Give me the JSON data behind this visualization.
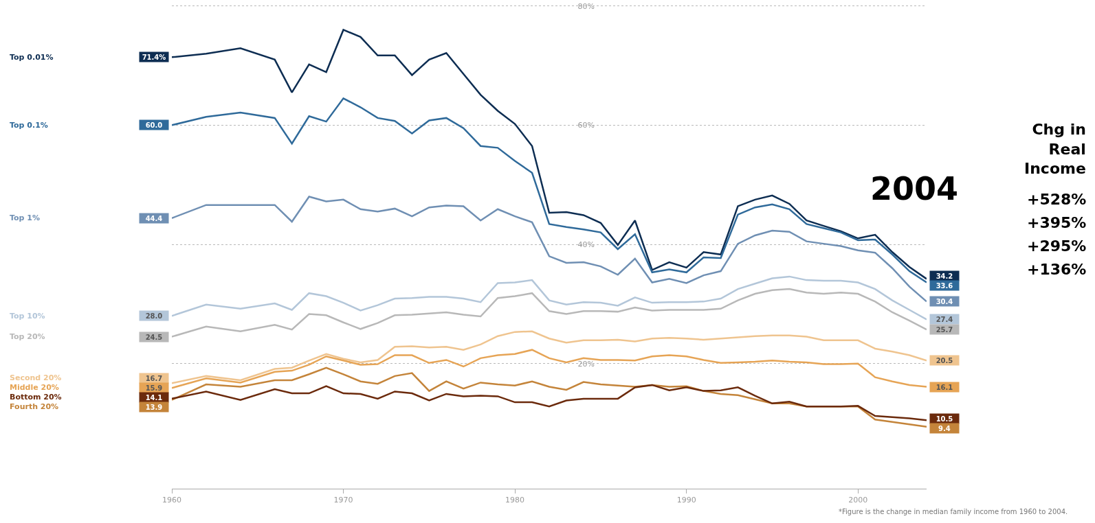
{
  "chart_data": {
    "type": "line",
    "x": [
      1960,
      1962,
      1964,
      1966,
      1967,
      1968,
      1969,
      1970,
      1971,
      1972,
      1973,
      1974,
      1975,
      1976,
      1977,
      1978,
      1979,
      1980,
      1981,
      1982,
      1983,
      1984,
      1985,
      1986,
      1987,
      1988,
      1989,
      1990,
      1991,
      1992,
      1993,
      1994,
      1995,
      1996,
      1997,
      1998,
      1999,
      2000,
      2001,
      2002,
      2003,
      2004
    ],
    "series": [
      {
        "name": "Top 0.01%",
        "color": "#0d2d52",
        "values": [
          71.4,
          72.0,
          72.9,
          71.0,
          65.5,
          70.2,
          68.9,
          76.0,
          74.8,
          71.7,
          71.7,
          68.4,
          71.0,
          72.1,
          68.6,
          65.1,
          62.4,
          60.2,
          56.5,
          45.3,
          45.4,
          44.9,
          43.6,
          39.9,
          44.0,
          35.7,
          37.0,
          36.1,
          38.7,
          38.3,
          46.4,
          47.5,
          48.2,
          46.8,
          44.0,
          43.1,
          42.2,
          41.0,
          41.6,
          38.7,
          36.2,
          34.2
        ],
        "value_labels": [
          "71.4%",
          null,
          null,
          null,
          null,
          null,
          null,
          null,
          null,
          null,
          null,
          null,
          null,
          null,
          null,
          null,
          null,
          null,
          null,
          null,
          null,
          null,
          null,
          null,
          null,
          null,
          null,
          null,
          null,
          null,
          null,
          null,
          null,
          null,
          null,
          null,
          null,
          null,
          null,
          null,
          null,
          "34.2"
        ]
      },
      {
        "name": "Top 0.1%",
        "color": "#2f6a9a",
        "values": [
          60.0,
          61.4,
          62.1,
          61.2,
          56.9,
          61.5,
          60.6,
          64.5,
          63.0,
          61.2,
          60.7,
          58.6,
          60.8,
          61.2,
          59.5,
          56.5,
          56.2,
          54.0,
          52.0,
          43.4,
          42.9,
          42.5,
          42.0,
          39.2,
          41.7,
          35.3,
          35.8,
          35.3,
          37.8,
          37.7,
          45.0,
          46.2,
          46.7,
          45.9,
          43.4,
          42.7,
          42.0,
          40.7,
          40.8,
          38.3,
          35.5,
          33.6
        ],
        "value_labels": [
          "60.0",
          null,
          null,
          null,
          null,
          null,
          null,
          null,
          null,
          null,
          null,
          null,
          null,
          null,
          null,
          null,
          null,
          null,
          null,
          null,
          null,
          null,
          null,
          null,
          null,
          null,
          null,
          null,
          null,
          null,
          null,
          null,
          null,
          null,
          null,
          null,
          null,
          null,
          null,
          null,
          null,
          "33.6"
        ]
      },
      {
        "name": "Top 1%",
        "color": "#6f8fb3",
        "values": [
          44.4,
          46.6,
          46.6,
          46.6,
          43.8,
          48.0,
          47.2,
          47.5,
          45.9,
          45.5,
          46.0,
          44.7,
          46.2,
          46.5,
          46.4,
          44.0,
          45.9,
          44.7,
          43.7,
          38.0,
          36.9,
          37.0,
          36.3,
          34.9,
          37.6,
          33.6,
          34.2,
          33.5,
          34.8,
          35.5,
          40.1,
          41.5,
          42.3,
          42.1,
          40.5,
          40.1,
          39.7,
          39.0,
          38.6,
          36.0,
          32.9,
          30.4
        ],
        "value_labels": [
          "44.4",
          null,
          null,
          null,
          null,
          null,
          null,
          null,
          null,
          null,
          null,
          null,
          null,
          null,
          null,
          null,
          null,
          null,
          null,
          null,
          null,
          null,
          null,
          null,
          null,
          null,
          null,
          null,
          null,
          null,
          null,
          null,
          null,
          null,
          null,
          null,
          null,
          null,
          null,
          null,
          null,
          "30.4"
        ]
      },
      {
        "name": "Top 10%",
        "color": "#b3c6d9",
        "values": [
          28.0,
          29.9,
          29.2,
          30.1,
          29.0,
          31.8,
          31.3,
          30.2,
          28.9,
          29.8,
          30.9,
          31.0,
          31.2,
          31.2,
          30.9,
          30.3,
          33.5,
          33.6,
          34.0,
          30.6,
          29.9,
          30.3,
          30.2,
          29.7,
          31.1,
          30.2,
          30.3,
          30.3,
          30.4,
          30.9,
          32.5,
          33.4,
          34.3,
          34.6,
          34.0,
          33.9,
          33.9,
          33.6,
          32.5,
          30.6,
          29.0,
          27.4
        ],
        "value_labels": [
          "28.0",
          null,
          null,
          null,
          null,
          null,
          null,
          null,
          null,
          null,
          null,
          null,
          null,
          null,
          null,
          null,
          null,
          null,
          null,
          null,
          null,
          null,
          null,
          null,
          null,
          null,
          null,
          null,
          null,
          null,
          null,
          null,
          null,
          null,
          null,
          null,
          null,
          null,
          null,
          null,
          null,
          "27.4"
        ]
      },
      {
        "name": "Top 20%",
        "color": "#b8b8b8",
        "values": [
          24.5,
          26.2,
          25.4,
          26.5,
          25.7,
          28.3,
          28.1,
          26.9,
          25.8,
          26.8,
          28.1,
          28.2,
          28.4,
          28.6,
          28.2,
          27.9,
          31.0,
          31.3,
          31.8,
          28.8,
          28.3,
          28.8,
          28.8,
          28.7,
          29.4,
          28.9,
          29.0,
          29.0,
          29.0,
          29.2,
          30.6,
          31.7,
          32.3,
          32.5,
          31.9,
          31.7,
          31.9,
          31.7,
          30.4,
          28.6,
          27.2,
          25.7
        ],
        "value_labels": [
          "24.5",
          null,
          null,
          null,
          null,
          null,
          null,
          null,
          null,
          null,
          null,
          null,
          null,
          null,
          null,
          null,
          null,
          null,
          null,
          null,
          null,
          null,
          null,
          null,
          null,
          null,
          null,
          null,
          null,
          null,
          null,
          null,
          null,
          null,
          null,
          null,
          null,
          null,
          null,
          null,
          null,
          "25.7"
        ]
      },
      {
        "name": "Second 20%",
        "color": "#efc48f",
        "values": [
          16.7,
          17.9,
          17.2,
          19.1,
          19.3,
          20.5,
          21.6,
          20.8,
          20.2,
          20.6,
          22.8,
          22.9,
          22.7,
          22.8,
          22.3,
          23.2,
          24.6,
          25.3,
          25.4,
          24.2,
          23.5,
          23.9,
          23.9,
          24.0,
          23.7,
          24.2,
          24.3,
          24.2,
          24.0,
          24.2,
          24.4,
          24.6,
          24.7,
          24.7,
          24.5,
          23.9,
          23.9,
          23.9,
          22.5,
          22.0,
          21.4,
          20.5
        ],
        "value_labels": [
          "16.7",
          null,
          null,
          null,
          null,
          null,
          null,
          null,
          null,
          null,
          null,
          null,
          null,
          null,
          null,
          null,
          null,
          null,
          null,
          null,
          null,
          null,
          null,
          null,
          null,
          null,
          null,
          null,
          null,
          null,
          null,
          null,
          null,
          null,
          null,
          null,
          null,
          null,
          null,
          null,
          null,
          "20.5"
        ]
      },
      {
        "name": "Middle 20%",
        "color": "#e6a455",
        "values": [
          15.9,
          17.5,
          16.8,
          18.6,
          18.8,
          19.8,
          21.2,
          20.5,
          19.8,
          19.9,
          21.4,
          21.4,
          20.1,
          20.6,
          19.5,
          20.9,
          21.4,
          21.6,
          22.3,
          20.9,
          20.2,
          20.9,
          20.6,
          20.6,
          20.5,
          21.2,
          21.4,
          21.2,
          20.6,
          20.1,
          20.2,
          20.3,
          20.5,
          20.3,
          20.2,
          19.9,
          19.9,
          20.0,
          17.7,
          17.0,
          16.4,
          16.1
        ],
        "value_labels": [
          "15.9",
          null,
          null,
          null,
          null,
          null,
          null,
          null,
          null,
          null,
          null,
          null,
          null,
          null,
          null,
          null,
          null,
          null,
          null,
          null,
          null,
          null,
          null,
          null,
          null,
          null,
          null,
          null,
          null,
          null,
          null,
          null,
          null,
          null,
          null,
          null,
          null,
          null,
          null,
          null,
          null,
          "16.1"
        ]
      },
      {
        "name": "Fourth 20%",
        "color": "#c4843a",
        "values": [
          13.9,
          16.5,
          16.1,
          17.2,
          17.2,
          18.2,
          19.3,
          18.2,
          17.0,
          16.6,
          17.9,
          18.4,
          15.4,
          17.0,
          15.8,
          16.8,
          16.5,
          16.3,
          17.0,
          16.1,
          15.6,
          16.9,
          16.5,
          16.3,
          16.1,
          16.4,
          16.1,
          16.2,
          15.4,
          14.9,
          14.7,
          14.0,
          13.3,
          13.3,
          12.8,
          12.8,
          12.8,
          12.8,
          10.6,
          10.2,
          9.8,
          9.4
        ],
        "value_labels": [
          "13.9",
          null,
          null,
          null,
          null,
          null,
          null,
          null,
          null,
          null,
          null,
          null,
          null,
          null,
          null,
          null,
          null,
          null,
          null,
          null,
          null,
          null,
          null,
          null,
          null,
          null,
          null,
          null,
          null,
          null,
          null,
          null,
          null,
          null,
          null,
          null,
          null,
          null,
          null,
          null,
          null,
          "9.4"
        ]
      },
      {
        "name": "Bottom 20%",
        "color": "#6b2a0c",
        "values": [
          14.1,
          15.3,
          13.9,
          15.7,
          15.0,
          15.0,
          16.2,
          15.0,
          14.9,
          14.1,
          15.3,
          15.0,
          13.8,
          14.9,
          14.5,
          14.6,
          14.5,
          13.5,
          13.5,
          12.8,
          13.8,
          14.1,
          14.1,
          14.1,
          16.0,
          16.4,
          15.5,
          16.0,
          15.4,
          15.5,
          16.0,
          14.6,
          13.3,
          13.6,
          12.8,
          12.8,
          12.8,
          12.9,
          11.2,
          11.0,
          10.8,
          10.5
        ],
        "value_labels": [
          "14.1",
          null,
          null,
          null,
          null,
          null,
          null,
          null,
          null,
          null,
          null,
          null,
          null,
          null,
          null,
          null,
          null,
          null,
          null,
          null,
          null,
          null,
          null,
          null,
          null,
          null,
          null,
          null,
          null,
          null,
          null,
          null,
          null,
          null,
          null,
          null,
          null,
          null,
          null,
          null,
          null,
          "10.5"
        ]
      }
    ],
    "xlim": [
      1960,
      2004
    ],
    "xticks": [
      1960,
      1970,
      1980,
      1990,
      2000
    ],
    "ylim": [
      -1,
      81
    ],
    "yticks": [
      {
        "value": 20,
        "label": "20%"
      },
      {
        "value": 40,
        "label": "40%"
      },
      {
        "value": 60,
        "label": "60%"
      },
      {
        "value": 80,
        "label": "80%"
      }
    ],
    "grid": "y",
    "legend": "left",
    "annotations": [
      "2004",
      "Chg in Real Income",
      "+528%",
      "+395%",
      "+295%",
      "+136%",
      "*Figure is the change in median family income from 1960 to 2004."
    ]
  }
}
